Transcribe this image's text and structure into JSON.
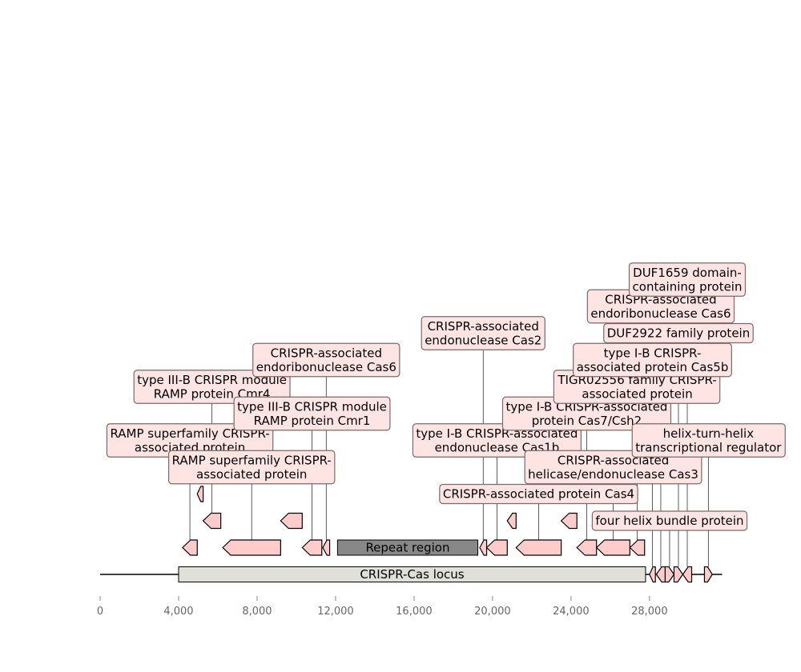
{
  "axis": {
    "ticks": [
      {
        "value": 0,
        "label": "0"
      },
      {
        "value": 4000,
        "label": "4,000"
      },
      {
        "value": 8000,
        "label": "8,000"
      },
      {
        "value": 12000,
        "label": "12,000"
      },
      {
        "value": 16000,
        "label": "16,000"
      },
      {
        "value": 20000,
        "label": "20,000"
      },
      {
        "value": 24000,
        "label": "24,000"
      },
      {
        "value": 28000,
        "label": "28,000"
      }
    ],
    "sequence_start": 0,
    "sequence_end": 31700
  },
  "regions": [
    {
      "name": "CRISPR-Cas locus",
      "start": 4000,
      "end": 27800,
      "color": "#e0e0d8"
    },
    {
      "name": "Repeat region",
      "start": 12100,
      "end": 19250,
      "color": "#888888"
    }
  ],
  "gene_color": "#ffcccc",
  "label_color": "#ffe4e4",
  "genes": [
    {
      "start": 4200,
      "end": 4950,
      "strand": -1,
      "level": 1,
      "label": [
        "RAMP superfamily CRISPR-",
        "associated protein"
      ],
      "label_level": 5
    },
    {
      "start": 4950,
      "end": 5250,
      "strand": -1,
      "level": 3
    },
    {
      "start": 5250,
      "end": 6150,
      "strand": -1,
      "level": 2,
      "label": [
        "type III-B CRISPR module",
        "RAMP protein Cmr4"
      ],
      "label_level": 7
    },
    {
      "start": 6250,
      "end": 9200,
      "strand": -1,
      "level": 1,
      "label": [
        "RAMP superfamily CRISPR-",
        "associated protein"
      ],
      "label_level": 4
    },
    {
      "start": 9200,
      "end": 10300,
      "strand": -1,
      "level": 2
    },
    {
      "start": 10300,
      "end": 11300,
      "strand": -1,
      "level": 1,
      "label": [
        "type III-B CRISPR module",
        "RAMP protein Cmr1"
      ],
      "label_level": 6
    },
    {
      "start": 11350,
      "end": 11700,
      "strand": -1,
      "level": 1,
      "label": [
        "CRISPR-associated",
        "endoribonuclease Cas6"
      ],
      "label_level": 8
    },
    {
      "start": 19350,
      "end": 19700,
      "strand": -1,
      "level": 1,
      "label": [
        "CRISPR-associated",
        "endonuclease Cas2"
      ],
      "label_level": 9
    },
    {
      "start": 19700,
      "end": 20750,
      "strand": -1,
      "level": 1,
      "label": [
        "type I-B CRISPR-associated",
        "endonuclease Cas1b"
      ],
      "label_level": 5
    },
    {
      "start": 20750,
      "end": 21200,
      "strand": -1,
      "level": 2
    },
    {
      "start": 21200,
      "end": 23500,
      "strand": -1,
      "level": 1,
      "label": [
        "CRISPR-associated protein Cas4"
      ],
      "label_level": 3
    },
    {
      "start": 23500,
      "end": 24300,
      "strand": -1,
      "level": 2
    },
    {
      "start": 24300,
      "end": 25300,
      "strand": -1,
      "level": 1,
      "label": [
        "type I-B CRISPR-associated",
        "protein Cas7/Csh2"
      ],
      "label_level": 6
    },
    {
      "start": 25300,
      "end": 27000,
      "strand": -1,
      "level": 1,
      "label": [
        "CRISPR-associated",
        "helicase/endonuclease Cas3"
      ],
      "label_level": 4
    },
    {
      "start": 27000,
      "end": 27750,
      "strand": -1,
      "level": 1,
      "label": [
        "TIGR02556 family CRISPR-",
        "associated protein"
      ],
      "label_level": 7
    },
    {
      "start": 28000,
      "end": 28300,
      "strand": -1,
      "level": 0,
      "label": [
        "type I-B CRISPR-",
        "associated protein Cas5b"
      ],
      "label_level": 8
    },
    {
      "start": 28350,
      "end": 28800,
      "strand": -1,
      "level": 0,
      "label": [
        "CRISPR-associated",
        "endoribonuclease Cas6"
      ],
      "label_level": 10
    },
    {
      "start": 28800,
      "end": 29250,
      "strand": 1,
      "level": 0,
      "label": [
        "four helix bundle protein"
      ],
      "label_level": 2
    },
    {
      "start": 29250,
      "end": 29700,
      "strand": 1,
      "level": 0,
      "label": [
        "DUF2922 family protein"
      ],
      "label_level": 9
    },
    {
      "start": 29700,
      "end": 30150,
      "strand": -1,
      "level": 0,
      "label": [
        "DUF1659 domain-",
        "containing protein"
      ],
      "label_level": 11
    },
    {
      "start": 30800,
      "end": 31200,
      "strand": 1,
      "level": 0,
      "label": [
        "helix-turn-helix",
        "transcriptional regulator"
      ],
      "label_level": 5
    }
  ]
}
